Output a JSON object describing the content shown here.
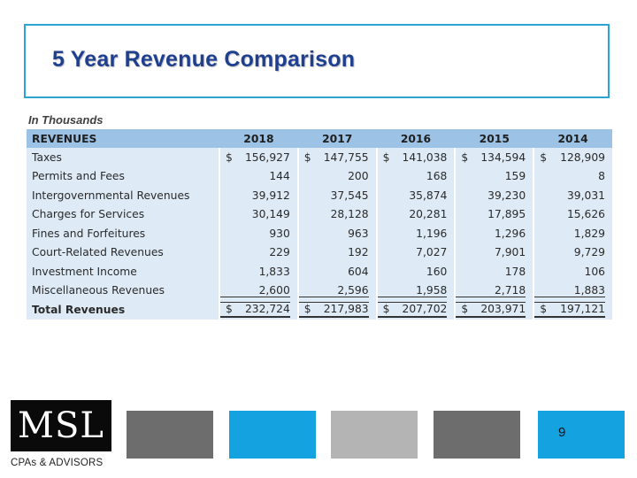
{
  "slide": {
    "title": "5 Year Revenue Comparison",
    "units": "In Thousands",
    "page_number": "9"
  },
  "table": {
    "header": {
      "label": "REVENUES",
      "years": [
        "2018",
        "2017",
        "2016",
        "2015",
        "2014"
      ]
    },
    "currency": "$",
    "rows": [
      {
        "label": "Taxes",
        "values": [
          "156,927",
          "147,755",
          "141,038",
          "134,594",
          "128,909"
        ],
        "dollar": true
      },
      {
        "label": "Permits and Fees",
        "values": [
          "144",
          "200",
          "168",
          "159",
          "8"
        ],
        "dollar": false
      },
      {
        "label": "Intergovernmental Revenues",
        "values": [
          "39,912",
          "37,545",
          "35,874",
          "39,230",
          "39,031"
        ],
        "dollar": false
      },
      {
        "label": "Charges for Services",
        "values": [
          "30,149",
          "28,128",
          "20,281",
          "17,895",
          "15,626"
        ],
        "dollar": false
      },
      {
        "label": "Fines and Forfeitures",
        "values": [
          "930",
          "963",
          "1,196",
          "1,296",
          "1,829"
        ],
        "dollar": false
      },
      {
        "label": "Court-Related Revenues",
        "values": [
          "229",
          "192",
          "7,027",
          "7,901",
          "9,729"
        ],
        "dollar": false
      },
      {
        "label": "Investment Income",
        "values": [
          "1,833",
          "604",
          "160",
          "178",
          "106"
        ],
        "dollar": false
      },
      {
        "label": "Miscellaneous Revenues",
        "values": [
          "2,600",
          "2,596",
          "1,958",
          "2,718",
          "1,883"
        ],
        "dollar": false
      }
    ],
    "total": {
      "label": "Total Revenues",
      "values": [
        "232,724",
        "217,983",
        "207,702",
        "203,971",
        "197,121"
      ],
      "dollar": true
    }
  },
  "footer": {
    "logo_text": "MSL",
    "logo_tagline": "CPAs & ADVISORS"
  },
  "colors": {
    "title": "#1f3f8f",
    "frame": "#2aa4d8",
    "header_fill": "#9cc2e5",
    "row_fill": "#deebf7",
    "gray_block": "#6d6d6d",
    "blue_block": "#14a3e0",
    "light_gray_block": "#b4b4b4"
  }
}
